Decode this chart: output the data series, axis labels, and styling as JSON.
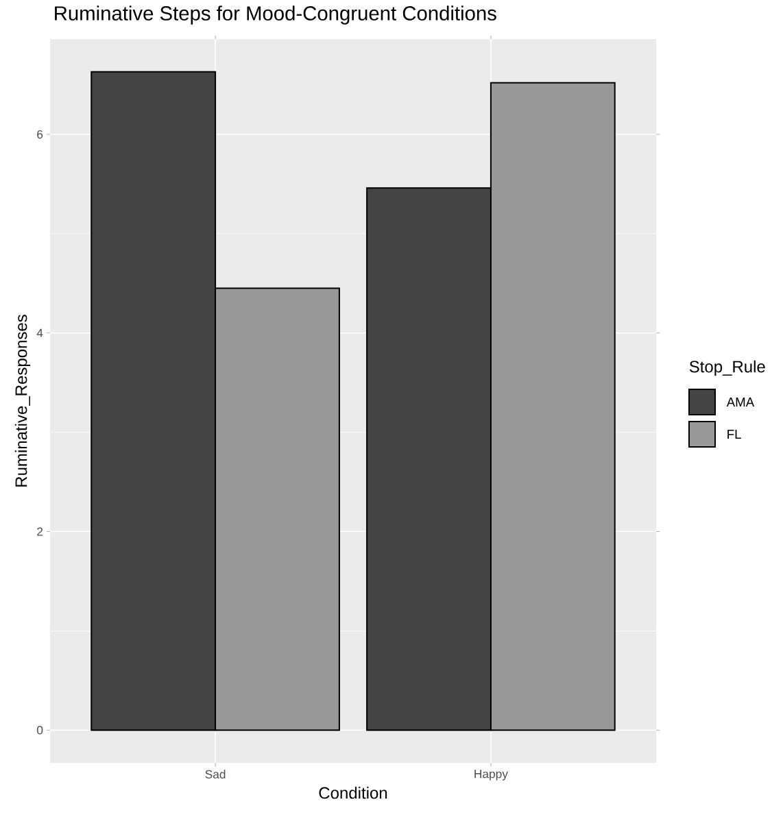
{
  "chart_data": {
    "type": "bar",
    "title": "Ruminative Steps for Mood-Congruent Conditions",
    "xlabel": "Condition",
    "ylabel": "Ruminative_Responses",
    "legend_title": "Stop_Rule",
    "categories": [
      "Sad",
      "Happy"
    ],
    "series": [
      {
        "name": "AMA",
        "color": "#444444",
        "values": [
          6.63,
          5.46
        ]
      },
      {
        "name": "FL",
        "color": "#999999",
        "values": [
          4.45,
          6.52
        ]
      }
    ],
    "ylim": [
      -0.33,
      6.96
    ],
    "yticks": [
      0,
      2,
      4,
      6
    ],
    "grid": true,
    "legend": "right"
  }
}
